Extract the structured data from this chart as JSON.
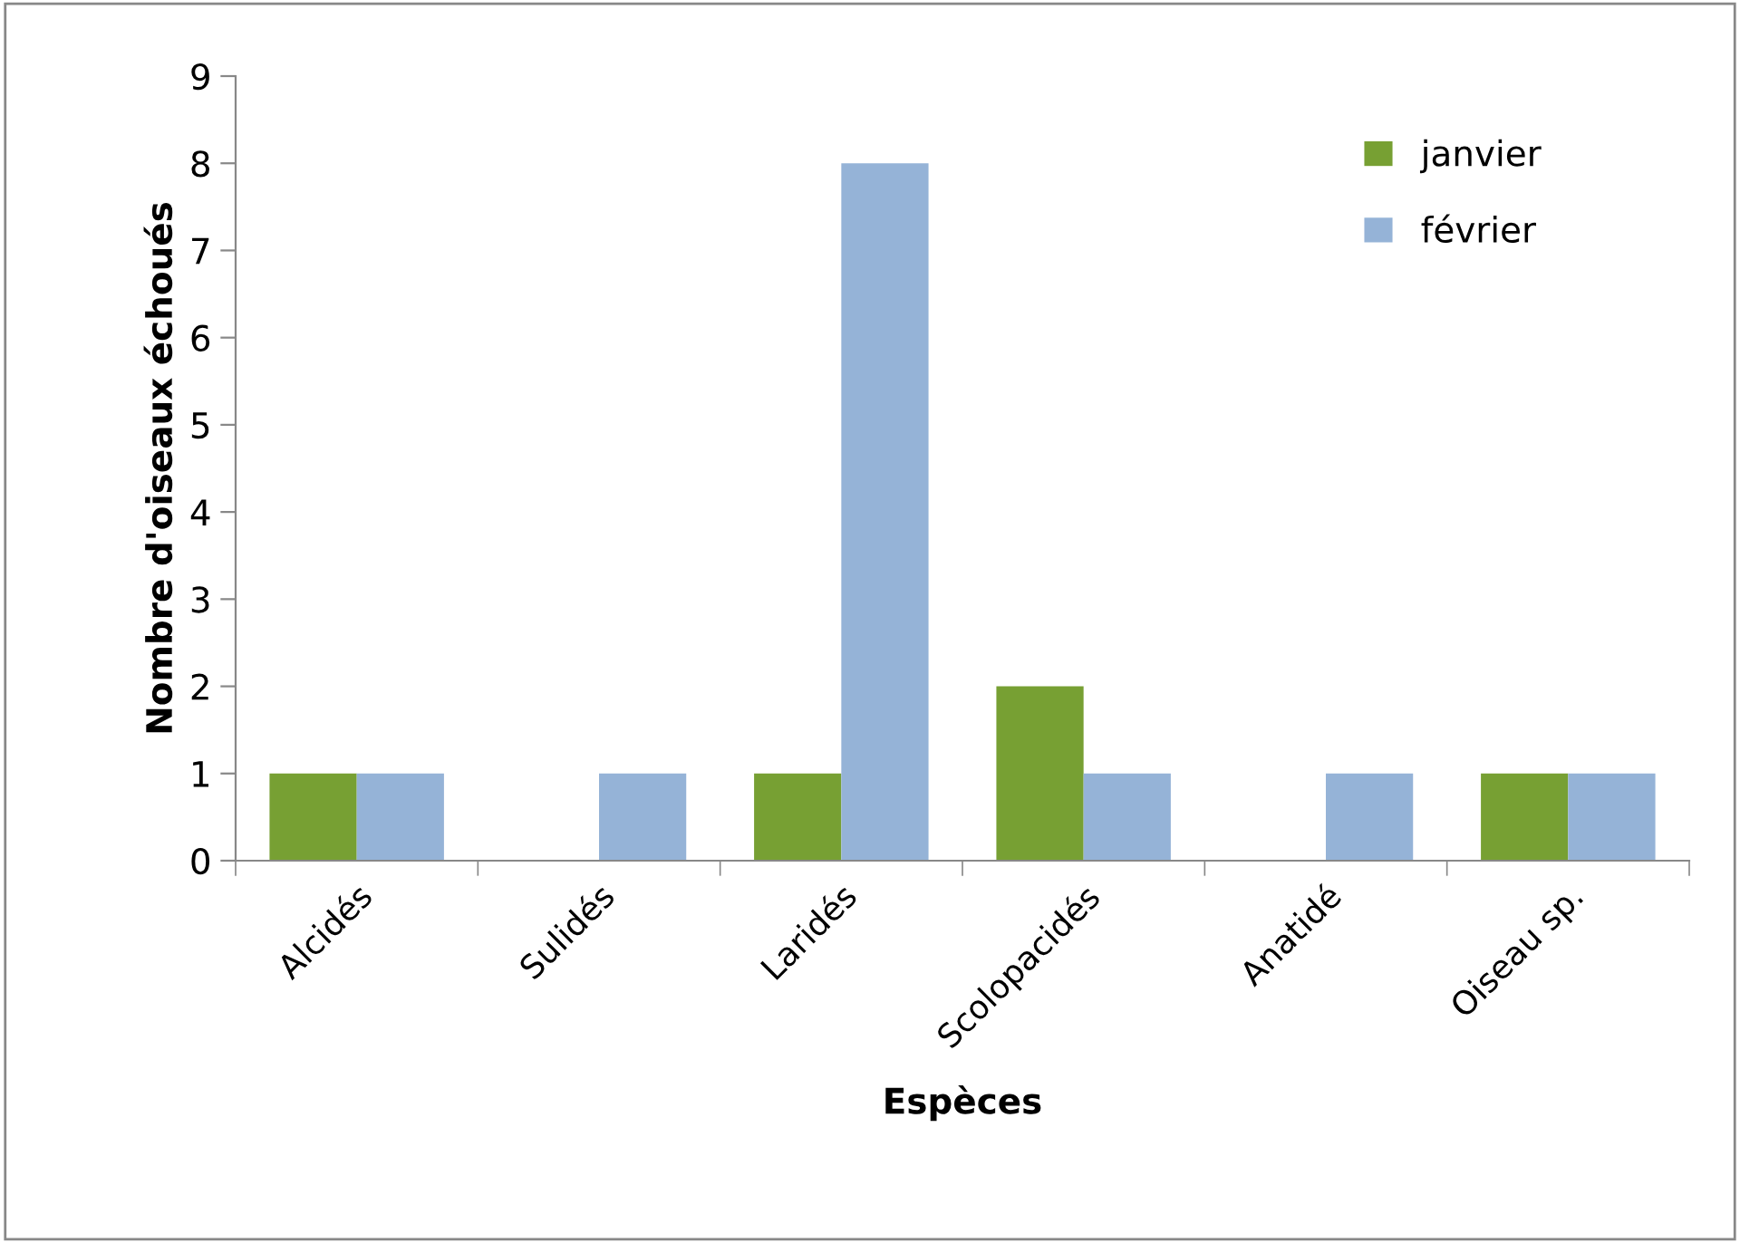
{
  "chart_data": {
    "type": "bar",
    "xlabel": "Espèces",
    "ylabel": "Nombre d'oiseaux échoués",
    "categories": [
      "Alcidés",
      "Sulidés",
      "Laridés",
      "Scolopacidés",
      "Anatidé",
      "Oiseau sp."
    ],
    "series": [
      {
        "name": "janvier",
        "color": "#77a033",
        "values": [
          1,
          0,
          1,
          2,
          0,
          1
        ]
      },
      {
        "name": "février",
        "color": "#95b3d7",
        "values": [
          1,
          1,
          8,
          1,
          1,
          1
        ]
      }
    ],
    "ylim": [
      0,
      9
    ],
    "yticks": [
      0,
      1,
      2,
      3,
      4,
      5,
      6,
      7,
      8,
      9
    ],
    "grid": false,
    "legend": "top right"
  }
}
